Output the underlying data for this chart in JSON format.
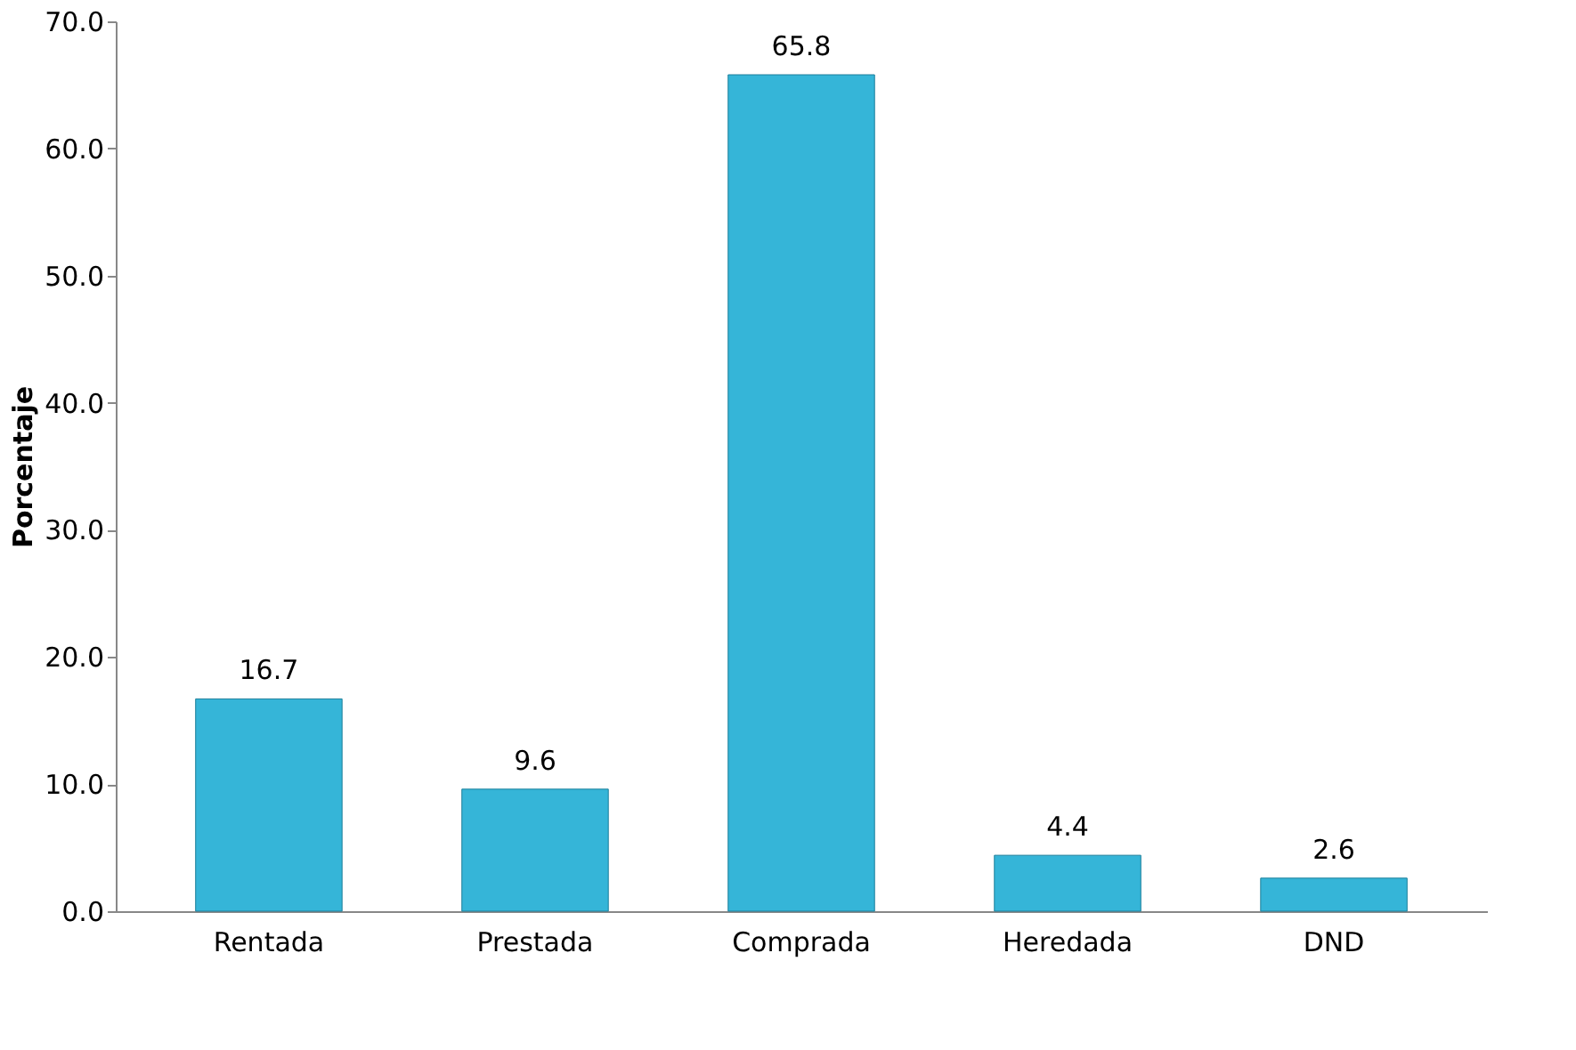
{
  "chart_data": {
    "type": "bar",
    "ylabel": "Porcentaje",
    "categories": [
      "Rentada",
      "Prestada",
      "Comprada",
      "Heredada",
      "DND"
    ],
    "values": [
      16.7,
      9.6,
      65.8,
      4.4,
      2.6
    ],
    "color": "#35b5d8",
    "ylim": [
      0,
      70
    ],
    "yticks": [
      {
        "value": 0,
        "label": "0.0"
      },
      {
        "value": 10,
        "label": "10.0"
      },
      {
        "value": 20,
        "label": "20.0"
      },
      {
        "value": 30,
        "label": "30.0"
      },
      {
        "value": 40,
        "label": "40.0"
      },
      {
        "value": 50,
        "label": "50.0"
      },
      {
        "value": 60,
        "label": "60.0"
      },
      {
        "value": 70,
        "label": "70.0"
      }
    ],
    "data_labels": true,
    "grid": false
  }
}
